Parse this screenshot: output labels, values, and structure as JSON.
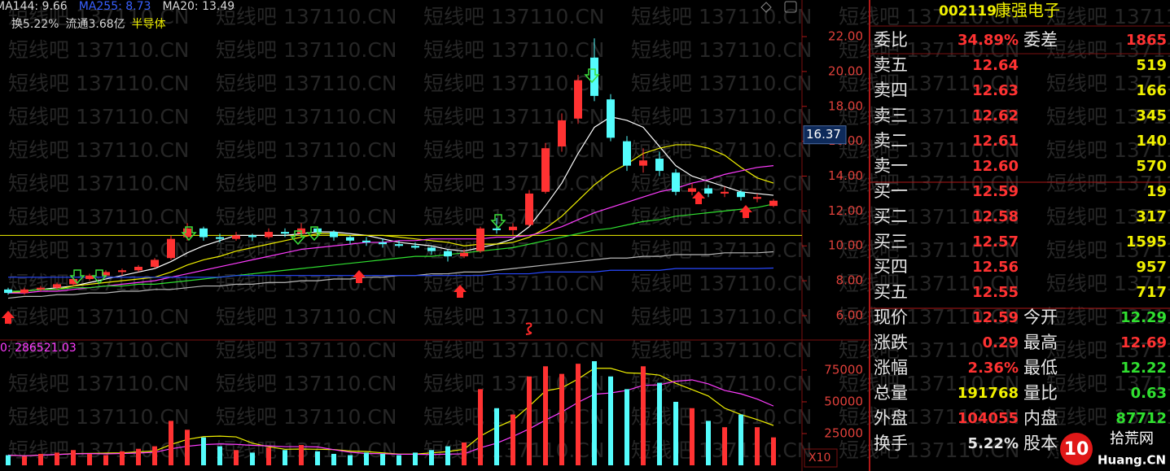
{
  "chart_data": [
    {
      "type": "candlestick",
      "open": [
        7.5,
        7.3,
        7.5,
        7.6,
        7.8,
        8.1,
        8.3,
        8.5,
        8.6,
        8.8,
        9.3,
        10.5,
        11.0,
        10.5,
        10.4,
        10.6,
        10.5,
        10.8,
        10.7,
        11.0,
        10.8,
        10.5,
        10.3,
        10.2,
        10.1,
        10.0,
        9.9,
        9.7,
        9.4,
        9.7,
        11.0,
        10.9,
        11.2,
        13.1,
        15.7,
        17.3,
        20.8,
        18.4,
        16.0,
        14.6,
        15.0,
        14.2,
        13.1,
        13.3,
        13.0,
        13.1,
        12.7,
        12.29
      ],
      "high": [
        7.6,
        7.6,
        7.7,
        7.9,
        8.2,
        8.4,
        8.6,
        8.7,
        8.9,
        9.3,
        10.6,
        11.3,
        11.1,
        10.7,
        10.8,
        10.7,
        11.0,
        11.0,
        11.3,
        11.1,
        10.9,
        10.6,
        10.5,
        10.4,
        10.3,
        10.2,
        10.0,
        9.8,
        9.8,
        11.1,
        11.6,
        11.3,
        13.2,
        15.9,
        17.6,
        19.8,
        21.9,
        18.7,
        16.3,
        15.6,
        15.4,
        14.4,
        13.6,
        13.5,
        13.4,
        13.2,
        13.0,
        12.69
      ],
      "low": [
        7.2,
        7.2,
        7.4,
        7.5,
        7.7,
        8.0,
        8.2,
        8.3,
        8.5,
        8.7,
        9.2,
        10.3,
        10.3,
        10.2,
        10.3,
        10.3,
        10.4,
        10.5,
        10.6,
        10.6,
        10.3,
        10.1,
        10.0,
        9.9,
        9.9,
        9.8,
        9.5,
        9.1,
        9.3,
        9.6,
        10.7,
        10.6,
        11.1,
        13.0,
        15.4,
        17.0,
        18.3,
        16.0,
        14.3,
        14.2,
        14.0,
        12.9,
        12.9,
        12.8,
        12.8,
        12.6,
        12.5,
        12.22
      ],
      "close": [
        7.3,
        7.5,
        7.6,
        7.8,
        8.1,
        8.3,
        8.5,
        8.6,
        8.8,
        9.2,
        10.4,
        11.0,
        10.5,
        10.4,
        10.6,
        10.5,
        10.8,
        10.7,
        11.0,
        10.8,
        10.5,
        10.3,
        10.2,
        10.1,
        10.0,
        9.9,
        9.7,
        9.4,
        9.6,
        11.0,
        10.9,
        11.1,
        13.0,
        15.6,
        17.2,
        19.5,
        18.6,
        16.2,
        14.6,
        14.9,
        14.3,
        13.1,
        13.3,
        13.0,
        13.1,
        12.8,
        12.8,
        12.59
      ],
      "up_color": "#ff3232",
      "down_color": "#54fcfc",
      "series": [
        {
          "color": "#ffffff",
          "values": [
            7.3,
            7.4,
            7.5,
            7.6,
            7.7,
            7.9,
            8.1,
            8.3,
            8.5,
            8.7,
            9.1,
            9.6,
            10.0,
            10.3,
            10.6,
            10.6,
            10.6,
            10.6,
            10.7,
            10.8,
            10.8,
            10.7,
            10.6,
            10.4,
            10.2,
            10.1,
            10.0,
            9.8,
            9.7,
            9.9,
            10.1,
            10.4,
            11.1,
            12.3,
            13.6,
            15.3,
            16.8,
            17.4,
            17.2,
            16.8,
            15.7,
            14.6,
            14.0,
            13.7,
            13.4,
            13.1,
            13.0,
            12.9
          ]
        },
        {
          "color": "#f0f000",
          "values": [
            7.3,
            7.4,
            7.5,
            7.5,
            7.7,
            7.8,
            7.9,
            8.0,
            8.1,
            8.2,
            8.5,
            8.9,
            9.2,
            9.4,
            9.7,
            9.9,
            10.1,
            10.3,
            10.5,
            10.7,
            10.7,
            10.6,
            10.6,
            10.6,
            10.5,
            10.4,
            10.3,
            10.2,
            10.0,
            10.1,
            10.1,
            10.2,
            10.5,
            11.0,
            11.7,
            12.6,
            13.5,
            14.2,
            14.7,
            15.3,
            15.6,
            15.8,
            15.8,
            15.6,
            15.2,
            14.5,
            13.9,
            13.6
          ]
        },
        {
          "color": "#ff3cff",
          "values": [
            7.3,
            7.3,
            7.4,
            7.4,
            7.5,
            7.6,
            7.7,
            7.8,
            7.9,
            8.0,
            8.2,
            8.4,
            8.6,
            8.8,
            9.0,
            9.2,
            9.4,
            9.6,
            9.8,
            9.9,
            10.0,
            10.1,
            10.2,
            10.2,
            10.3,
            10.3,
            10.4,
            10.4,
            10.4,
            10.4,
            10.5,
            10.5,
            10.6,
            10.8,
            11.1,
            11.5,
            11.9,
            12.2,
            12.5,
            12.8,
            13.1,
            13.3,
            13.6,
            13.8,
            14.1,
            14.3,
            14.5,
            14.6
          ]
        },
        {
          "color": "#30e030",
          "values": [
            7.4,
            7.4,
            7.5,
            7.5,
            7.6,
            7.6,
            7.7,
            7.7,
            7.8,
            7.8,
            7.9,
            8.0,
            8.1,
            8.2,
            8.3,
            8.4,
            8.5,
            8.6,
            8.7,
            8.8,
            8.9,
            9.0,
            9.1,
            9.2,
            9.3,
            9.4,
            9.4,
            9.5,
            9.6,
            9.7,
            9.8,
            9.9,
            10.1,
            10.3,
            10.5,
            10.7,
            10.9,
            11.0,
            11.2,
            11.4,
            11.5,
            11.7,
            11.8,
            11.9,
            12.0,
            12.1,
            12.2,
            12.4
          ]
        },
        {
          "color": "#b8b8b8",
          "values": [
            7.0,
            7.1,
            7.1,
            7.2,
            7.2,
            7.3,
            7.3,
            7.4,
            7.4,
            7.5,
            7.5,
            7.6,
            7.7,
            7.7,
            7.8,
            7.8,
            7.9,
            7.9,
            8.0,
            8.0,
            8.1,
            8.1,
            8.2,
            8.2,
            8.3,
            8.3,
            8.4,
            8.4,
            8.5,
            8.5,
            8.6,
            8.7,
            8.8,
            8.9,
            9.0,
            9.1,
            9.2,
            9.3,
            9.3,
            9.4,
            9.4,
            9.5,
            9.5,
            9.5,
            9.6,
            9.6,
            9.6,
            9.66
          ]
        },
        {
          "color": "#2848ff",
          "values": [
            8.2,
            8.2,
            8.2,
            8.2,
            8.2,
            8.2,
            8.2,
            8.2,
            8.2,
            8.2,
            8.2,
            8.2,
            8.2,
            8.2,
            8.3,
            8.3,
            8.3,
            8.3,
            8.3,
            8.3,
            8.3,
            8.3,
            8.3,
            8.3,
            8.3,
            8.3,
            8.3,
            8.3,
            8.3,
            8.3,
            8.4,
            8.4,
            8.4,
            8.5,
            8.5,
            8.5,
            8.5,
            8.6,
            8.6,
            8.6,
            8.6,
            8.7,
            8.7,
            8.7,
            8.7,
            8.7,
            8.7,
            8.73
          ]
        }
      ],
      "hline": 10.6,
      "hline_color": "#f0f000",
      "cursor_price": 16.37,
      "ylim": [
        4.74,
        24.1
      ],
      "yticks": [
        {
          "value": 6,
          "label": "6.00"
        },
        {
          "value": 8,
          "label": "8.00"
        },
        {
          "value": 10,
          "label": "10.00"
        },
        {
          "value": 12,
          "label": "12.00"
        },
        {
          "value": 14,
          "label": "14.00"
        },
        {
          "value": 16,
          "label": "16.00"
        },
        {
          "value": 18,
          "label": "18.00"
        },
        {
          "value": 20,
          "label": "20.00"
        },
        {
          "value": 22,
          "label": "22.00"
        }
      ]
    },
    {
      "type": "bar",
      "title": "0: 286521.03",
      "values": [
        8000,
        7000,
        9000,
        10000,
        12000,
        9000,
        8000,
        11000,
        13000,
        15000,
        35000,
        28000,
        22000,
        15000,
        12000,
        10000,
        14000,
        12000,
        16000,
        11000,
        9000,
        8000,
        10000,
        9000,
        8000,
        10000,
        12000,
        15000,
        18000,
        60000,
        45000,
        40000,
        70000,
        78000,
        72000,
        80000,
        82000,
        70000,
        60000,
        78000,
        65000,
        50000,
        45000,
        35000,
        30000,
        40000,
        30000,
        22000
      ],
      "series": [
        {
          "color": "#f0f000",
          "values": [
            8000,
            7500,
            8000,
            8500,
            9200,
            9400,
            9600,
            9800,
            10600,
            11200,
            16400,
            20400,
            22600,
            23000,
            22400,
            17400,
            14600,
            12600,
            12800,
            12600,
            12400,
            11200,
            10800,
            9800,
            8800,
            8800,
            9800,
            10800,
            12600,
            23000,
            30000,
            35600,
            46600,
            58600,
            61000,
            68000,
            76400,
            76400,
            72800,
            72400,
            71000,
            64600,
            59600,
            54600,
            45000,
            40000,
            36000,
            31400
          ]
        },
        {
          "color": "#ff3cff",
          "values": [
            8000,
            7500,
            8000,
            8500,
            9000,
            9200,
            9000,
            9300,
            9700,
            10200,
            13000,
            15000,
            16300,
            16800,
            16500,
            15700,
            15300,
            14700,
            14700,
            14500,
            12300,
            10300,
            9300,
            9100,
            8700,
            8700,
            8500,
            8800,
            9000,
            13800,
            17400,
            22700,
            28700,
            35600,
            42000,
            49600,
            56000,
            57000,
            59000,
            63000,
            63400,
            66200,
            67300,
            64100,
            59000,
            56300,
            52200,
            46700
          ]
        }
      ],
      "unit_label": "X10",
      "ylim": [
        0,
        97400
      ],
      "yticks": [
        25000,
        50000,
        75000
      ]
    }
  ],
  "header": [
    {
      "text": "MA144: 9.66",
      "color": "#d8d8d8"
    },
    {
      "text": "MA255: 8.73",
      "color": "#3860ff"
    },
    {
      "text": "MA20: 13.49",
      "color": "#d8d8d8"
    }
  ],
  "header2": [
    {
      "text": "换5.22%",
      "color": "#d8d8d8"
    },
    {
      "text": "流通3.68亿",
      "color": "#d8d8d8"
    },
    {
      "text": "半导体",
      "color": "#f0f000"
    }
  ],
  "watermark": "短线吧 137110.CN",
  "quote": {
    "code": "002119",
    "name": "康强电子",
    "rows": [
      {
        "cells": [
          "委比",
          "34.89%",
          "委差",
          "1865"
        ],
        "colors": [
          "#e8e8e8",
          "#ff3232",
          "#e8e8e8",
          "#ff3232"
        ]
      },
      {
        "cells": [
          "卖五",
          "12.64",
          "519"
        ],
        "colors": [
          "#e8e8e8",
          "#ff3232",
          "#f0f000"
        ]
      },
      {
        "cells": [
          "卖四",
          "12.63",
          "166"
        ],
        "colors": [
          "#e8e8e8",
          "#ff3232",
          "#f0f000"
        ]
      },
      {
        "cells": [
          "卖三",
          "12.62",
          "345"
        ],
        "colors": [
          "#e8e8e8",
          "#ff3232",
          "#f0f000"
        ]
      },
      {
        "cells": [
          "卖二",
          "12.61",
          "140"
        ],
        "colors": [
          "#e8e8e8",
          "#ff3232",
          "#f0f000"
        ]
      },
      {
        "cells": [
          "卖一",
          "12.60",
          "570"
        ],
        "colors": [
          "#e8e8e8",
          "#ff3232",
          "#f0f000"
        ]
      },
      {
        "cells": [
          "买一",
          "12.59",
          "19"
        ],
        "colors": [
          "#e8e8e8",
          "#ff3232",
          "#f0f000"
        ]
      },
      {
        "cells": [
          "买二",
          "12.58",
          "317"
        ],
        "colors": [
          "#e8e8e8",
          "#ff3232",
          "#f0f000"
        ]
      },
      {
        "cells": [
          "买三",
          "12.57",
          "1595"
        ],
        "colors": [
          "#e8e8e8",
          "#ff3232",
          "#f0f000"
        ]
      },
      {
        "cells": [
          "买四",
          "12.56",
          "957"
        ],
        "colors": [
          "#e8e8e8",
          "#ff3232",
          "#f0f000"
        ]
      },
      {
        "cells": [
          "买五",
          "12.55",
          "717"
        ],
        "colors": [
          "#e8e8e8",
          "#ff3232",
          "#f0f000"
        ]
      },
      {
        "cells": [
          "现价",
          "12.59",
          "今开",
          "12.29"
        ],
        "colors": [
          "#e8e8e8",
          "#ff3232",
          "#e8e8e8",
          "#30e030"
        ]
      },
      {
        "cells": [
          "涨跌",
          "0.29",
          "最高",
          "12.69"
        ],
        "colors": [
          "#e8e8e8",
          "#ff3232",
          "#e8e8e8",
          "#ff3232"
        ]
      },
      {
        "cells": [
          "涨幅",
          "2.36%",
          "最低",
          "12.22"
        ],
        "colors": [
          "#e8e8e8",
          "#ff3232",
          "#e8e8e8",
          "#30e030"
        ]
      },
      {
        "cells": [
          "总量",
          "191768",
          "量比",
          "0.63"
        ],
        "colors": [
          "#e8e8e8",
          "#f0f000",
          "#e8e8e8",
          "#30e030"
        ]
      },
      {
        "cells": [
          "外盘",
          "104055",
          "内盘",
          "87712"
        ],
        "colors": [
          "#e8e8e8",
          "#ff3232",
          "#e8e8e8",
          "#30e030"
        ]
      },
      {
        "cells": [
          "换手",
          "5.22%",
          "股本"
        ],
        "colors": [
          "#e8e8e8",
          "#e8e8e8",
          "#e8e8e8"
        ]
      }
    ]
  },
  "logo": {
    "number": "10",
    "name": "拾荒网",
    "site": "Huang.CN"
  }
}
